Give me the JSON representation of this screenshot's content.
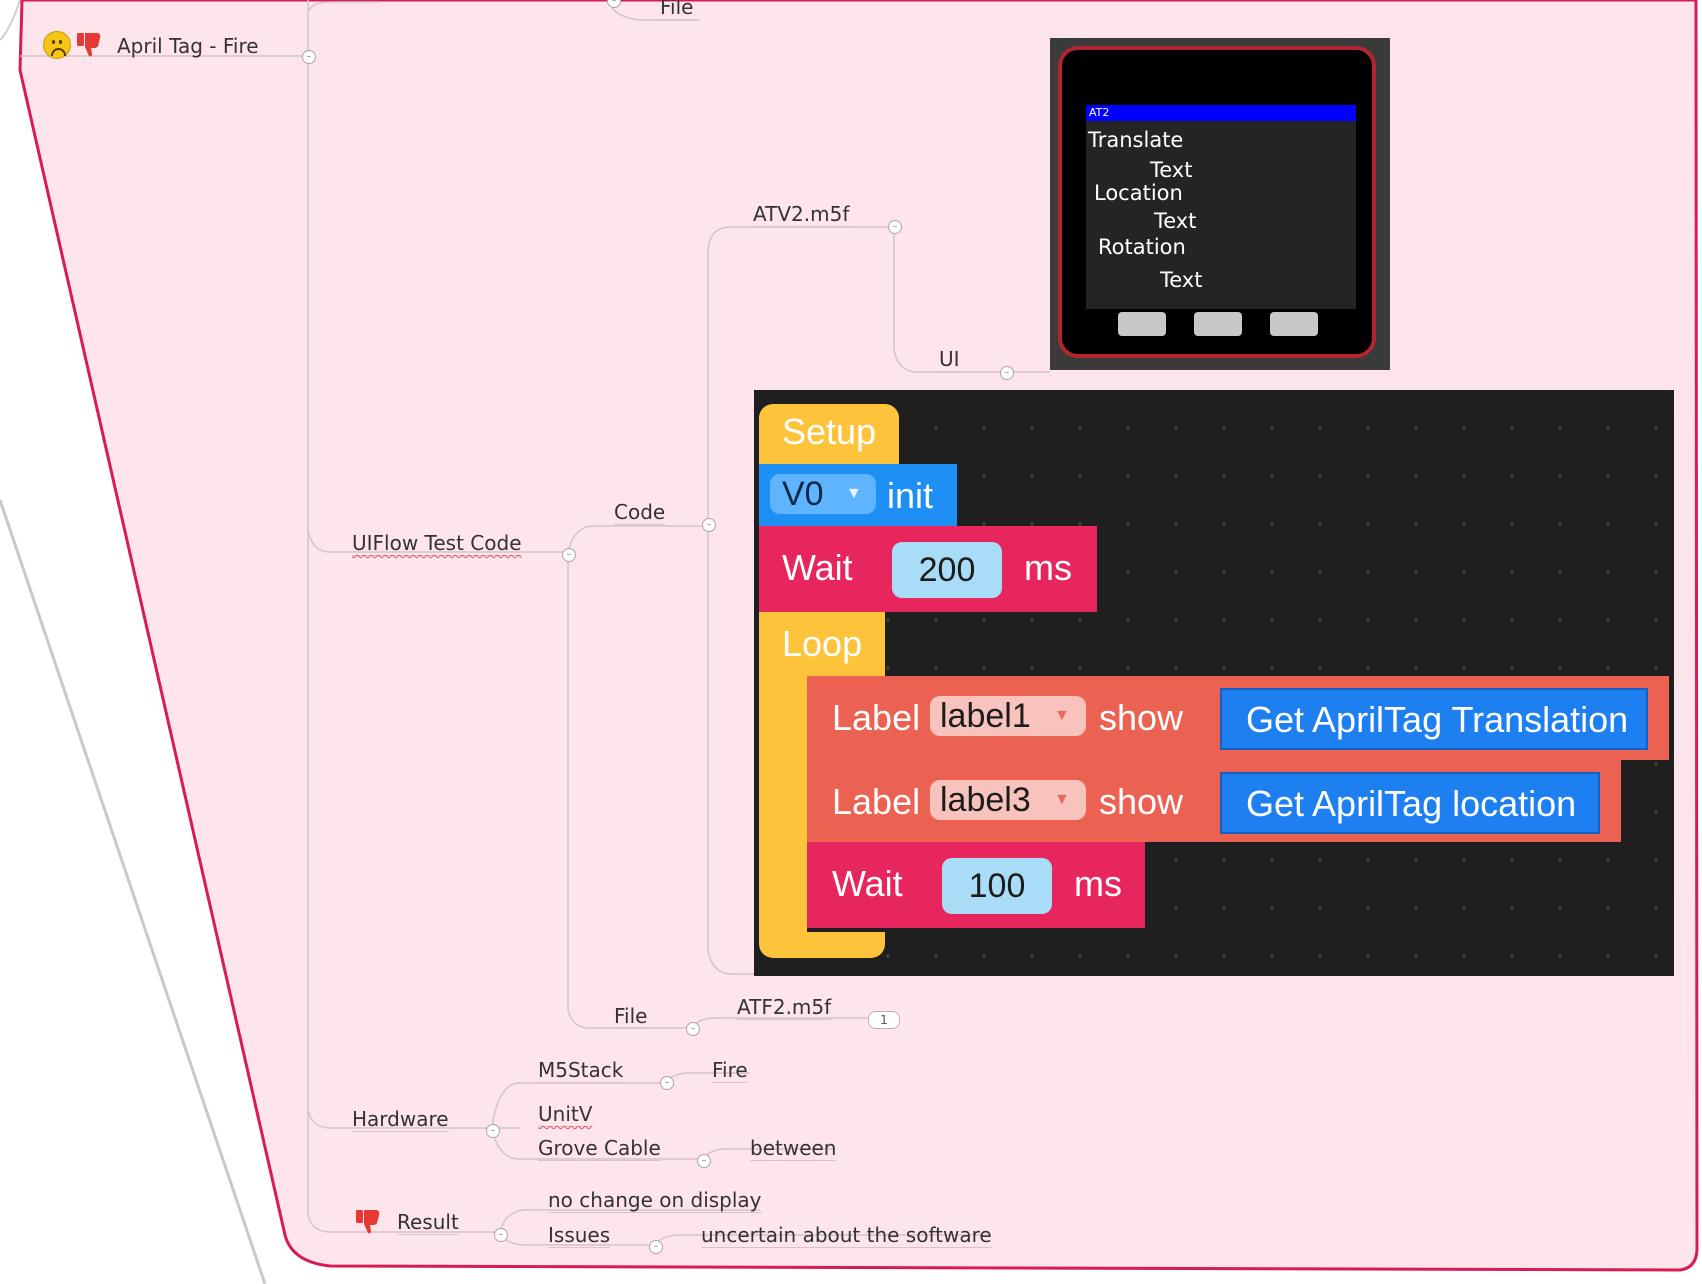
{
  "mindmap": {
    "topic": "April Tag - Fire",
    "top_stub": "File",
    "uiflow": {
      "label": "UIFlow Test Code",
      "code": "Code",
      "atv2": "ATV2.m5f",
      "ui": "UI",
      "file": "File",
      "atf2": "ATF2.m5f",
      "atf2_count": "1"
    },
    "hardware": {
      "label": "Hardware",
      "m5stack": "M5Stack",
      "fire": "Fire",
      "unitv": "UnitV",
      "grove": "Grove Cable",
      "between": "between"
    },
    "result": {
      "label": "Result",
      "no_change": "no change on display",
      "issues": "Issues",
      "uncertain": "uncertain about the software"
    }
  },
  "device": {
    "title": "AT2",
    "lines": [
      "Translate",
      "Text",
      "Location",
      "Text",
      "Rotation",
      "Text"
    ]
  },
  "blocks": {
    "setup": "Setup",
    "v0": "V0",
    "init": "init",
    "wait": "Wait",
    "wait1_value": "200",
    "ms": "ms",
    "loop": "Loop",
    "label": "Label",
    "label1": "label1",
    "label3": "label3",
    "show": "show",
    "get_translation": "Get AprilTag Translation",
    "get_location": "Get AprilTag location",
    "wait2_value": "100"
  },
  "colors": {
    "boundary_fill": "#fde5eb",
    "boundary_stroke": "#d81b55",
    "setup_block": "#fdc33b",
    "v0_block": "#1e8ff5",
    "wait_block": "#e8265e",
    "label_block": "#eb6152",
    "value_slot": "#a9dcf6"
  }
}
